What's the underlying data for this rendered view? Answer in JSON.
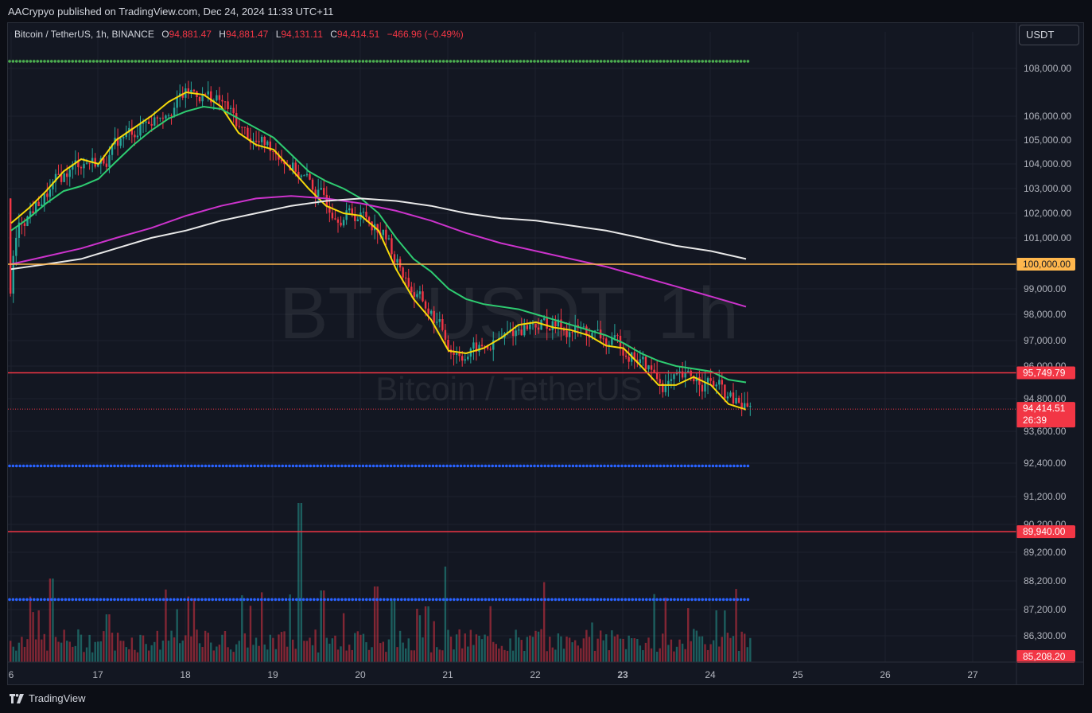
{
  "header": {
    "published": "AACrypyo published on TradingView.com, Dec 24, 2024 11:33 UTC+11"
  },
  "symbol": {
    "name": "Bitcoin / TetherUS, 1h, BINANCE",
    "o_label": "O",
    "o_value": "94,881.47",
    "h_label": "H",
    "h_value": "94,881.47",
    "l_label": "L",
    "l_value": "94,131.11",
    "c_label": "C",
    "c_value": "94,414.51",
    "change": "−466.96 (−0.49%)"
  },
  "currency_button": "USDT",
  "watermark": {
    "ticker": "BTCUSDT, 1h",
    "name": "Bitcoin / TetherUS"
  },
  "footer": {
    "brand": "TradingView",
    "logo_icon": "tradingview-logo-icon"
  },
  "colors": {
    "background": "#131722",
    "up": "#26a69a",
    "down": "#f23645",
    "ema_fast": "#f5d90a",
    "ema_mid": "#2ecc71",
    "ema_slow": "#cc33cc",
    "ema_200": "#e8e8e8",
    "level_yellow": "#ffb74d",
    "level_red": "#f23645",
    "level_green": "#4caf50",
    "level_blue": "#2962ff"
  },
  "chart_data": {
    "type": "candlestick",
    "title": "",
    "xlabel": "",
    "ylabel": "",
    "ylim": [
      85208.2,
      108800
    ],
    "x_axis": {
      "tick_labels": [
        "6",
        "17",
        "18",
        "19",
        "20",
        "21",
        "22",
        "23",
        "24",
        "25",
        "26",
        "27"
      ],
      "range": [
        16,
        28
      ]
    },
    "y_axis": {
      "tick_labels": [
        "108,000.00",
        "106,000.00",
        "105,000.00",
        "104,000.00",
        "103,000.00",
        "102,000.00",
        "101,000.00",
        "100,000.00",
        "99,000.00",
        "98,000.00",
        "97,000.00",
        "96,000.00",
        "94,800.00",
        "93,600.00",
        "92,400.00",
        "91,200.00",
        "90,200.00",
        "89,200.00",
        "88,200.00",
        "87,200.00",
        "86,300.00"
      ]
    },
    "grid": true,
    "price_labels": [
      {
        "value": "100,000.00",
        "color": "#ffb74d"
      },
      {
        "value": "95,749.79",
        "color": "#f23645"
      },
      {
        "value": "94,414.51",
        "sub": "26:39",
        "color": "#f23645"
      },
      {
        "value": "89,940.00",
        "color": "#f23645"
      },
      {
        "value": "85,208.20",
        "color": "#f23645"
      }
    ],
    "horizontal_levels": [
      {
        "price": 108300,
        "style": "dotted",
        "color": "#4caf50"
      },
      {
        "price": 100000,
        "style": "solid",
        "color": "#ffb74d"
      },
      {
        "price": 95749.79,
        "style": "solid",
        "color": "#f23645"
      },
      {
        "price": 92300,
        "style": "dotted",
        "color": "#2962ff"
      },
      {
        "price": 89940,
        "style": "solid",
        "color": "#f23645"
      },
      {
        "price": 87550,
        "style": "dotted",
        "color": "#2962ff"
      }
    ],
    "last_price": 94414.51,
    "series": [
      {
        "kind": "ema",
        "color": "#f5d90a",
        "points": [
          [
            16.0,
            101600
          ],
          [
            16.2,
            102200
          ],
          [
            16.4,
            102900
          ],
          [
            16.6,
            103700
          ],
          [
            16.8,
            104200
          ],
          [
            17.0,
            104000
          ],
          [
            17.2,
            105000
          ],
          [
            17.4,
            105500
          ],
          [
            17.6,
            106000
          ],
          [
            17.8,
            106600
          ],
          [
            18.0,
            107000
          ],
          [
            18.2,
            106900
          ],
          [
            18.4,
            106400
          ],
          [
            18.6,
            105300
          ],
          [
            18.8,
            104800
          ],
          [
            19.0,
            104600
          ],
          [
            19.2,
            103800
          ],
          [
            19.4,
            103000
          ],
          [
            19.6,
            102300
          ],
          [
            19.8,
            102000
          ],
          [
            20.0,
            101900
          ],
          [
            20.2,
            101300
          ],
          [
            20.4,
            99800
          ],
          [
            20.6,
            98600
          ],
          [
            20.8,
            97800
          ],
          [
            21.0,
            96600
          ],
          [
            21.2,
            96500
          ],
          [
            21.4,
            96700
          ],
          [
            21.6,
            97100
          ],
          [
            21.8,
            97600
          ],
          [
            22.0,
            97700
          ],
          [
            22.2,
            97500
          ],
          [
            22.4,
            97400
          ],
          [
            22.6,
            97200
          ],
          [
            22.8,
            96800
          ],
          [
            23.0,
            96700
          ],
          [
            23.2,
            96000
          ],
          [
            23.4,
            95300
          ],
          [
            23.6,
            95300
          ],
          [
            23.8,
            95600
          ],
          [
            24.0,
            95300
          ],
          [
            24.2,
            94600
          ],
          [
            24.4,
            94400
          ]
        ]
      },
      {
        "kind": "ema",
        "color": "#2ecc71",
        "points": [
          [
            16.0,
            101300
          ],
          [
            16.2,
            101800
          ],
          [
            16.4,
            102400
          ],
          [
            16.6,
            102900
          ],
          [
            16.8,
            103100
          ],
          [
            17.0,
            103400
          ],
          [
            17.2,
            104100
          ],
          [
            17.4,
            104800
          ],
          [
            17.6,
            105400
          ],
          [
            17.8,
            105900
          ],
          [
            18.0,
            106200
          ],
          [
            18.2,
            106400
          ],
          [
            18.4,
            106300
          ],
          [
            18.6,
            105900
          ],
          [
            18.8,
            105500
          ],
          [
            19.0,
            105100
          ],
          [
            19.2,
            104400
          ],
          [
            19.4,
            103700
          ],
          [
            19.6,
            103300
          ],
          [
            19.8,
            103000
          ],
          [
            20.0,
            102600
          ],
          [
            20.2,
            102000
          ],
          [
            20.4,
            101000
          ],
          [
            20.6,
            100200
          ],
          [
            20.8,
            99700
          ],
          [
            21.0,
            99000
          ],
          [
            21.2,
            98600
          ],
          [
            21.4,
            98400
          ],
          [
            21.6,
            98300
          ],
          [
            21.8,
            98200
          ],
          [
            22.0,
            98000
          ],
          [
            22.2,
            97800
          ],
          [
            22.4,
            97600
          ],
          [
            22.6,
            97400
          ],
          [
            22.8,
            97200
          ],
          [
            23.0,
            96900
          ],
          [
            23.2,
            96500
          ],
          [
            23.4,
            96200
          ],
          [
            23.6,
            96000
          ],
          [
            23.8,
            95900
          ],
          [
            24.0,
            95800
          ],
          [
            24.2,
            95500
          ],
          [
            24.4,
            95400
          ]
        ]
      },
      {
        "kind": "ema",
        "color": "#cc33cc",
        "points": [
          [
            16.0,
            100000
          ],
          [
            16.4,
            100300
          ],
          [
            16.8,
            100600
          ],
          [
            17.2,
            101000
          ],
          [
            17.6,
            101400
          ],
          [
            18.0,
            101900
          ],
          [
            18.4,
            102300
          ],
          [
            18.8,
            102600
          ],
          [
            19.2,
            102700
          ],
          [
            19.6,
            102600
          ],
          [
            20.0,
            102400
          ],
          [
            20.4,
            102100
          ],
          [
            20.8,
            101700
          ],
          [
            21.2,
            101200
          ],
          [
            21.6,
            100800
          ],
          [
            22.0,
            100500
          ],
          [
            22.4,
            100200
          ],
          [
            22.8,
            99900
          ],
          [
            23.2,
            99500
          ],
          [
            23.6,
            99100
          ],
          [
            24.0,
            98700
          ],
          [
            24.4,
            98300
          ]
        ]
      },
      {
        "kind": "ema",
        "color": "#e8e8e8",
        "points": [
          [
            16.0,
            99800
          ],
          [
            16.4,
            100000
          ],
          [
            16.8,
            100200
          ],
          [
            17.2,
            100600
          ],
          [
            17.6,
            101000
          ],
          [
            18.0,
            101300
          ],
          [
            18.4,
            101700
          ],
          [
            18.8,
            102000
          ],
          [
            19.2,
            102300
          ],
          [
            19.6,
            102500
          ],
          [
            20.0,
            102600
          ],
          [
            20.4,
            102500
          ],
          [
            20.8,
            102300
          ],
          [
            21.2,
            102000
          ],
          [
            21.6,
            101800
          ],
          [
            22.0,
            101700
          ],
          [
            22.4,
            101500
          ],
          [
            22.8,
            101300
          ],
          [
            23.2,
            101000
          ],
          [
            23.6,
            100700
          ],
          [
            24.0,
            100500
          ],
          [
            24.4,
            100200
          ]
        ]
      }
    ]
  }
}
